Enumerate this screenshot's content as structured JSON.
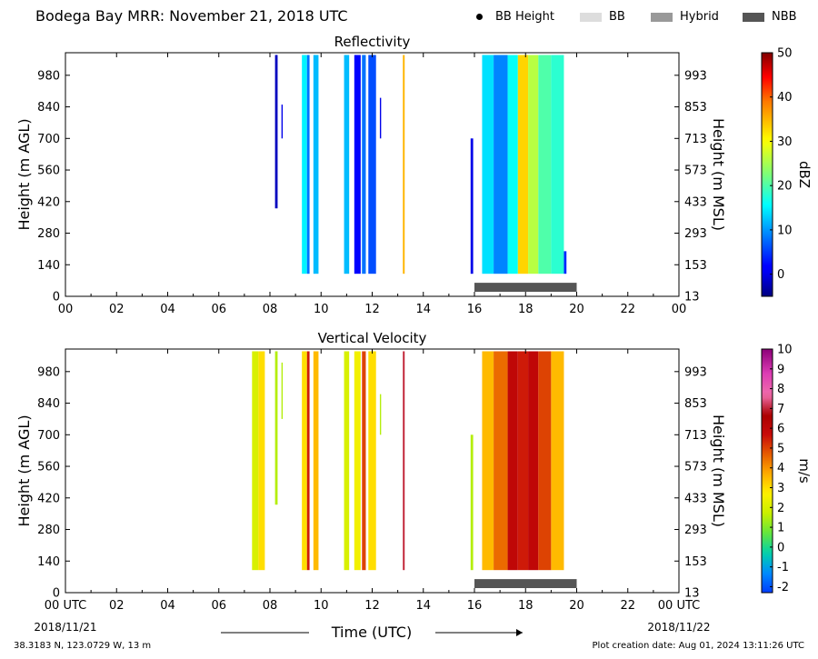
{
  "header": {
    "title": "Bodega Bay MRR:  November 21, 2018 UTC",
    "legend": [
      {
        "label": "BB Height",
        "marker": "dot",
        "color": "#000000"
      },
      {
        "label": "BB",
        "marker": "swatch",
        "color": "#dddddd"
      },
      {
        "label": "Hybrid",
        "marker": "swatch",
        "color": "#999999"
      },
      {
        "label": "NBB",
        "marker": "swatch",
        "color": "#555555"
      }
    ]
  },
  "chart_data": [
    {
      "type": "heatmap",
      "title": "Reflectivity",
      "ylabel": "Height (m AGL)",
      "ylabel_right": "Height (m MSL)",
      "xlim": [
        0,
        24
      ],
      "ylim": [
        0,
        1080
      ],
      "xticks": [
        "00",
        "02",
        "04",
        "06",
        "08",
        "10",
        "12",
        "14",
        "16",
        "18",
        "20",
        "22",
        "00"
      ],
      "yticks": [
        0,
        140,
        280,
        420,
        560,
        700,
        840,
        980
      ],
      "yticks_right": [
        "13",
        "153",
        "293",
        "433",
        "573",
        "713",
        "853",
        "993"
      ],
      "colorbar": {
        "label": "dBZ",
        "min": -5,
        "max": 50,
        "ticks": [
          "0",
          "10",
          "20",
          "30",
          "40",
          "50"
        ],
        "tick_values": [
          0,
          10,
          20,
          30,
          40,
          50
        ],
        "colormap": "jet"
      },
      "rain_type_bar": {
        "label": "NBB",
        "start_hour": 16.0,
        "end_hour": 20.0,
        "color": "#555555"
      },
      "echoes": [
        {
          "t0": 8.2,
          "t1": 8.3,
          "z0": 390,
          "z1": 1070,
          "v": -2
        },
        {
          "t0": 8.45,
          "t1": 8.5,
          "z0": 700,
          "z1": 850,
          "v": 0
        },
        {
          "t0": 9.25,
          "t1": 9.45,
          "z0": 100,
          "z1": 1070,
          "v": 15
        },
        {
          "t0": 9.45,
          "t1": 9.55,
          "z0": 100,
          "z1": 1070,
          "v": 8
        },
        {
          "t0": 9.7,
          "t1": 9.9,
          "z0": 100,
          "z1": 1070,
          "v": 12
        },
        {
          "t0": 10.9,
          "t1": 11.1,
          "z0": 100,
          "z1": 1070,
          "v": 12
        },
        {
          "t0": 11.3,
          "t1": 11.55,
          "z0": 100,
          "z1": 1070,
          "v": 2
        },
        {
          "t0": 11.6,
          "t1": 11.75,
          "z0": 100,
          "z1": 1070,
          "v": 8
        },
        {
          "t0": 11.85,
          "t1": 12.15,
          "z0": 100,
          "z1": 1070,
          "v": 6
        },
        {
          "t0": 12.3,
          "t1": 12.35,
          "z0": 700,
          "z1": 880,
          "v": 0
        },
        {
          "t0": 13.2,
          "t1": 13.27,
          "z0": 100,
          "z1": 1070,
          "v": 35
        },
        {
          "t0": 15.85,
          "t1": 15.95,
          "z0": 100,
          "z1": 700,
          "v": 0
        },
        {
          "t0": 16.3,
          "t1": 16.75,
          "z0": 100,
          "z1": 1070,
          "v": 14
        },
        {
          "t0": 16.75,
          "t1": 17.3,
          "z0": 100,
          "z1": 1070,
          "v": 9
        },
        {
          "t0": 17.3,
          "t1": 17.7,
          "z0": 100,
          "z1": 1070,
          "v": 16
        },
        {
          "t0": 17.7,
          "t1": 18.1,
          "z0": 100,
          "z1": 1070,
          "v": 33
        },
        {
          "t0": 18.1,
          "t1": 18.5,
          "z0": 100,
          "z1": 1070,
          "v": 26
        },
        {
          "t0": 18.5,
          "t1": 19.0,
          "z0": 100,
          "z1": 1070,
          "v": 20
        },
        {
          "t0": 19.0,
          "t1": 19.5,
          "z0": 100,
          "z1": 1070,
          "v": 18
        },
        {
          "t0": 19.5,
          "t1": 19.6,
          "z0": 100,
          "z1": 200,
          "v": 4
        }
      ]
    },
    {
      "type": "heatmap",
      "title": "Vertical Velocity",
      "ylabel": "Height (m AGL)",
      "ylabel_right": "Height (m MSL)",
      "xlim": [
        0,
        24
      ],
      "ylim": [
        0,
        1080
      ],
      "xticks": [
        "00 UTC",
        "02",
        "04",
        "06",
        "08",
        "10",
        "12",
        "14",
        "16",
        "18",
        "20",
        "22",
        "00 UTC"
      ],
      "xticks_sub": [
        "2018/11/21",
        "2018/11/22"
      ],
      "xlabel": "Time (UTC)",
      "yticks": [
        0,
        140,
        280,
        420,
        560,
        700,
        840,
        980
      ],
      "yticks_right": [
        "13",
        "153",
        "293",
        "433",
        "573",
        "713",
        "853",
        "993"
      ],
      "colorbar": {
        "label": "m/s",
        "min": -2.3,
        "max": 10,
        "ticks": [
          "-2",
          "-1",
          "0",
          "1",
          "2",
          "3",
          "4",
          "5",
          "6",
          "7",
          "8",
          "9",
          "10"
        ],
        "tick_values": [
          -2,
          -1,
          0,
          1,
          2,
          3,
          4,
          5,
          6,
          7,
          8,
          9,
          10
        ],
        "colormap": "velocity"
      },
      "rain_type_bar": {
        "label": "NBB",
        "start_hour": 16.0,
        "end_hour": 20.0,
        "color": "#555555"
      },
      "echoes": [
        {
          "t0": 7.3,
          "t1": 7.55,
          "z0": 100,
          "z1": 1070,
          "v": 2.0
        },
        {
          "t0": 7.55,
          "t1": 7.8,
          "z0": 100,
          "z1": 1070,
          "v": 3.0
        },
        {
          "t0": 8.2,
          "t1": 8.3,
          "z0": 390,
          "z1": 1070,
          "v": 1.5
        },
        {
          "t0": 8.45,
          "t1": 8.5,
          "z0": 770,
          "z1": 1020,
          "v": 1.5
        },
        {
          "t0": 9.25,
          "t1": 9.45,
          "z0": 100,
          "z1": 1070,
          "v": 3.0
        },
        {
          "t0": 9.45,
          "t1": 9.55,
          "z0": 100,
          "z1": 1070,
          "v": 5.5
        },
        {
          "t0": 9.7,
          "t1": 9.9,
          "z0": 100,
          "z1": 1070,
          "v": 3.5
        },
        {
          "t0": 10.9,
          "t1": 11.1,
          "z0": 100,
          "z1": 1070,
          "v": 2.0
        },
        {
          "t0": 11.3,
          "t1": 11.55,
          "z0": 100,
          "z1": 1070,
          "v": 2.5
        },
        {
          "t0": 11.6,
          "t1": 11.75,
          "z0": 100,
          "z1": 1070,
          "v": 5.0
        },
        {
          "t0": 11.85,
          "t1": 12.15,
          "z0": 100,
          "z1": 1070,
          "v": 3.0
        },
        {
          "t0": 12.3,
          "t1": 12.35,
          "z0": 700,
          "z1": 880,
          "v": 1.5
        },
        {
          "t0": 13.2,
          "t1": 13.27,
          "z0": 100,
          "z1": 1070,
          "v": 7.0
        },
        {
          "t0": 15.85,
          "t1": 15.95,
          "z0": 100,
          "z1": 700,
          "v": 1.5
        },
        {
          "t0": 16.3,
          "t1": 16.75,
          "z0": 100,
          "z1": 1070,
          "v": 3.5
        },
        {
          "t0": 16.75,
          "t1": 17.3,
          "z0": 100,
          "z1": 1070,
          "v": 4.5
        },
        {
          "t0": 17.3,
          "t1": 17.7,
          "z0": 100,
          "z1": 1070,
          "v": 6.0
        },
        {
          "t0": 17.7,
          "t1": 18.1,
          "z0": 100,
          "z1": 1070,
          "v": 5.5
        },
        {
          "t0": 18.1,
          "t1": 18.5,
          "z0": 100,
          "z1": 1070,
          "v": 6.0
        },
        {
          "t0": 18.5,
          "t1": 19.0,
          "z0": 100,
          "z1": 1070,
          "v": 5.0
        },
        {
          "t0": 19.0,
          "t1": 19.5,
          "z0": 100,
          "z1": 1070,
          "v": 3.5
        }
      ]
    }
  ],
  "footer": {
    "coordinates": "38.3183 N, 123.0729 W, 13 m",
    "created": "Plot creation date: Aug 01, 2024 13:11:26 UTC"
  }
}
